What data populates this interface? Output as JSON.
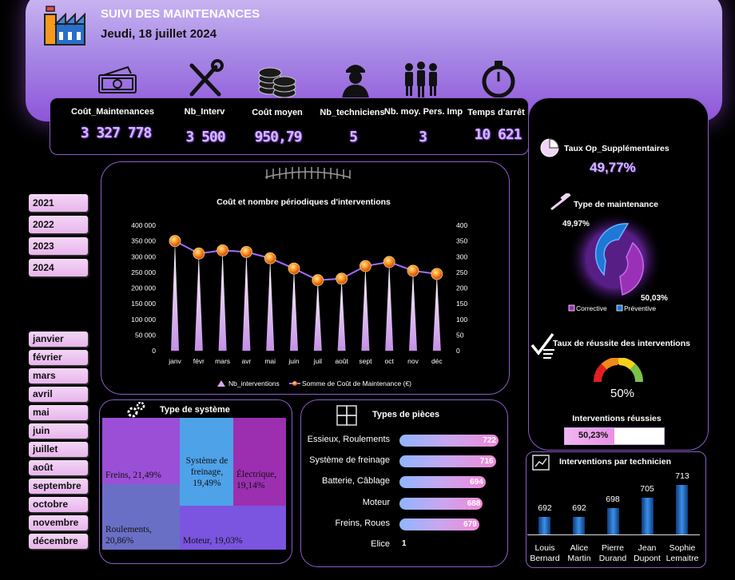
{
  "header": {
    "title": "SUIVI DES MAINTENANCES",
    "date": "Jeudi, 18 juillet  2024"
  },
  "kpis": [
    {
      "label": "Coût_Maintenances",
      "value": "3 327 778",
      "icon": "money-icon"
    },
    {
      "label": "Nb_Interv",
      "value": "3 500",
      "icon": "tools-icon"
    },
    {
      "label": "Coût moyen",
      "value": "950,79",
      "icon": "coins-icon"
    },
    {
      "label": "Nb_techniciens",
      "value": "5",
      "icon": "technician-icon"
    },
    {
      "label": "Nb. moy. Pers. Imp",
      "value": "3",
      "icon": "people-icon"
    },
    {
      "label": "Temps d'arrêt",
      "value": "10 621",
      "icon": "stopwatch-icon"
    }
  ],
  "years": [
    "2021",
    "2022",
    "2023",
    "2024"
  ],
  "months": [
    "janvier",
    "février",
    "mars",
    "avril",
    "mai",
    "juin",
    "juillet",
    "août",
    "septembre",
    "octobre",
    "novembre",
    "décembre"
  ],
  "chart_data": [
    {
      "type": "line",
      "title": "Coût et nombre périodiques d'interventions",
      "categories": [
        "janv",
        "févr",
        "mars",
        "avr",
        "mai",
        "juin",
        "juil",
        "août",
        "sept",
        "oct",
        "nov",
        "déc"
      ],
      "left_axis": {
        "ticks": [
          "400 000",
          "350 000",
          "300 000",
          "250 000",
          "200 000",
          "150 000",
          "100 000",
          "50 000",
          "0"
        ],
        "ylim": [
          0,
          400000
        ]
      },
      "right_axis": {
        "ticks": [
          "400",
          "350",
          "300",
          "250",
          "200",
          "150",
          "100",
          "50",
          "0"
        ],
        "ylim": [
          0,
          400
        ]
      },
      "series": [
        {
          "name": "Nb_interventions",
          "axis": "right",
          "values": [
            350,
            310,
            320,
            315,
            295,
            262,
            225,
            230,
            270,
            283,
            255,
            245
          ]
        },
        {
          "name": "Somme de Coût de Maintenance (€)",
          "axis": "left",
          "values": [
            350000,
            310000,
            320000,
            315000,
            295000,
            262000,
            225000,
            230000,
            270000,
            283000,
            255000,
            245000
          ]
        }
      ],
      "legend": "bottom"
    },
    {
      "type": "pie",
      "title": "Type de maintenance",
      "slices": [
        {
          "name": "Corrective",
          "value": 50.03,
          "label": "50,03%",
          "color": "#9b30b8"
        },
        {
          "name": "Préventive",
          "value": 49.97,
          "label": "49,97%",
          "color": "#1e78d6"
        }
      ]
    },
    {
      "type": "bar",
      "title": "Interventions par technicien",
      "categories": [
        "Louis Bernard",
        "Alice Martin",
        "Pierre Durand",
        "Jean Dupont",
        "Sophie Lemaitre"
      ],
      "values": [
        692,
        692,
        698,
        705,
        713
      ]
    }
  ],
  "supp": {
    "title": "Taux Op_Supplémentaires",
    "value": "49,77%"
  },
  "maint_type": {
    "title": "Type de maintenance",
    "legend_corrective": "Corrective",
    "legend_preventive": "Préventive",
    "label_preventive": "49,97%",
    "label_corrective": "50,03%"
  },
  "success": {
    "title": "Taux de réussite des interventions",
    "gauge_value": "50%",
    "bar_title": "Interventions réussies",
    "bar_value": "50,23%",
    "bar_fraction": 0.5023
  },
  "systems": {
    "title": "Type de système",
    "cells": [
      {
        "label": "Freins, 21,49%",
        "color": "#9b4fd6"
      },
      {
        "label": "Système de freinage, 19,49%",
        "color": "#4ea2e8"
      },
      {
        "label": "Électrique, 19,14%",
        "color": "#9b2fb0"
      },
      {
        "label": "Roulements, 20,86%",
        "color": "#6a6fc6"
      },
      {
        "label": "Moteur, 19,03%",
        "color": "#7b54e0"
      }
    ]
  },
  "pieces": {
    "title": "Types de pièces",
    "items": [
      {
        "label": "Essieux, Roulements",
        "value": 722
      },
      {
        "label": "Système de freinage",
        "value": 716
      },
      {
        "label": "Batterie, Câblage",
        "value": 694
      },
      {
        "label": "Moteur",
        "value": 688
      },
      {
        "label": "Freins, Roues",
        "value": 679
      },
      {
        "label": "Elice",
        "value": 1
      }
    ]
  },
  "technicians": {
    "title": "Interventions par technicien",
    "items": [
      {
        "first": "Louis",
        "last": "Bernard",
        "value": "692"
      },
      {
        "first": "Alice",
        "last": "Martin",
        "value": "692"
      },
      {
        "first": "Pierre",
        "last": "Durand",
        "value": "698"
      },
      {
        "first": "Jean",
        "last": "Dupont",
        "value": "705"
      },
      {
        "first": "Sophie",
        "last": "Lemaitre",
        "value": "713"
      }
    ]
  }
}
